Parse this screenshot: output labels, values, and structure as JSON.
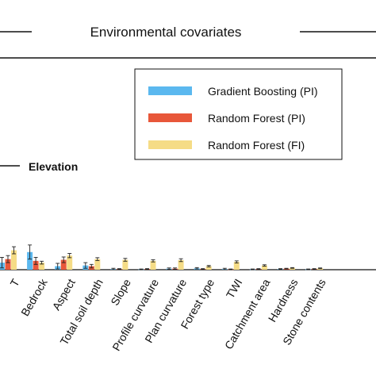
{
  "chart_data": {
    "type": "bar",
    "title": "Environmental covariates",
    "annotation": "Elevation",
    "categories": [
      "T",
      "Bedrock",
      "Aspect",
      "Total soil depth",
      "Slope",
      "Profile curvature",
      "Plan curvature",
      "Forest type",
      "TWI",
      "Catchment area",
      "Hardness",
      "Stone contents"
    ],
    "series": [
      {
        "name": "Gradient Boosting (PI)",
        "color": "#5bb8ef",
        "values": [
          0.02,
          0.05,
          0.01,
          0.012,
          0.002,
          0.001,
          0.003,
          0.004,
          0.002,
          0.001,
          0.002,
          0.001
        ],
        "errors": [
          0.015,
          0.02,
          0.008,
          0.008,
          0.002,
          0.001,
          0.002,
          0.002,
          0.002,
          0.001,
          0.001,
          0.001
        ]
      },
      {
        "name": "Random Forest (PI)",
        "color": "#e8573a",
        "values": [
          0.03,
          0.025,
          0.028,
          0.01,
          0.002,
          0.002,
          0.003,
          0.002,
          0.001,
          0.002,
          0.003,
          0.002
        ],
        "errors": [
          0.01,
          0.01,
          0.008,
          0.005,
          0.001,
          0.001,
          0.002,
          0.001,
          0.001,
          0.001,
          0.001,
          0.001
        ]
      },
      {
        "name": "Random Forest (FI)",
        "color": "#f5dc86",
        "values": [
          0.055,
          0.02,
          0.04,
          0.03,
          0.028,
          0.025,
          0.027,
          0.01,
          0.022,
          0.012,
          0.005,
          0.004
        ],
        "errors": [
          0.01,
          0.004,
          0.006,
          0.004,
          0.004,
          0.003,
          0.004,
          0.002,
          0.003,
          0.002,
          0.001,
          0.001
        ]
      }
    ],
    "legend": "top-right",
    "grid": false,
    "ylim": [
      0,
      0.6
    ]
  }
}
